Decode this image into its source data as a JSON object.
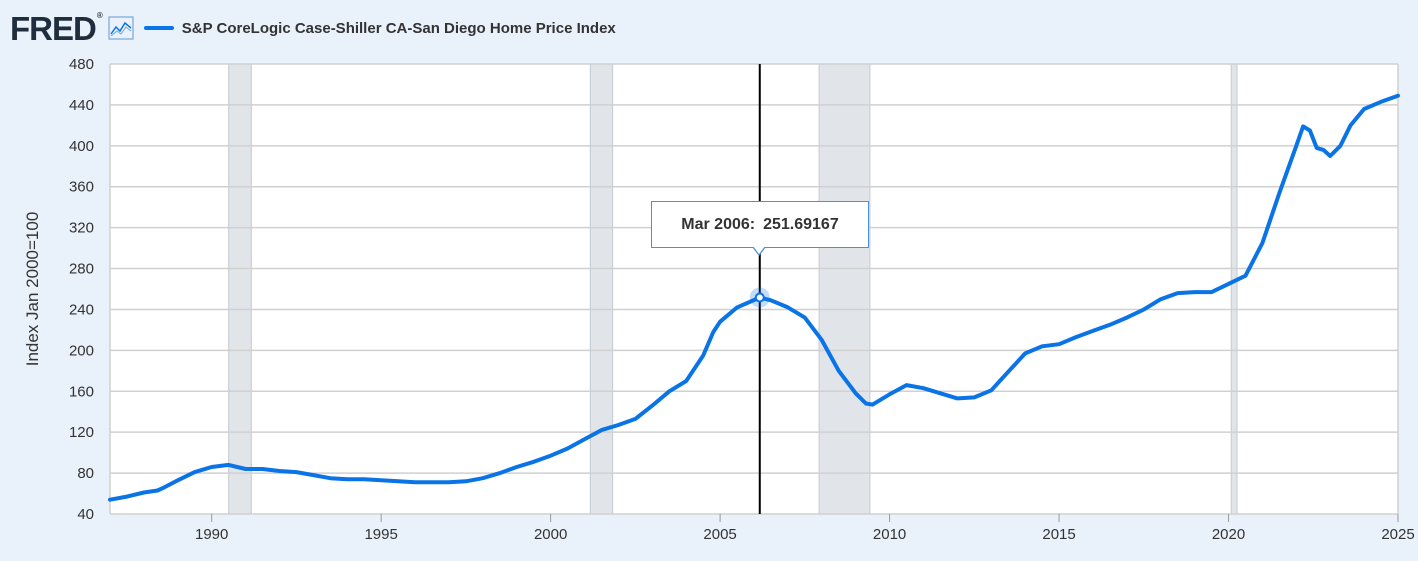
{
  "header": {
    "logo_text": "FRED",
    "logo_reg": "®",
    "series_title": "S&P CoreLogic Case-Shiller CA-San Diego Home Price Index"
  },
  "tooltip": {
    "date": "Mar 2006:",
    "value": "251.69167"
  },
  "colors": {
    "line": "#0a73e6",
    "background": "#e9f1fa",
    "plot_background": "#ffffff",
    "recession": "#e1e5ea",
    "grid": "#d0d0d0",
    "cursor": "#000000"
  },
  "chart_data": {
    "type": "line",
    "ylabel": "Index Jan 2000=100",
    "xlim": [
      1987.0,
      2025.0
    ],
    "ylim": [
      40,
      480
    ],
    "x_ticks": [
      1990,
      1995,
      2000,
      2005,
      2010,
      2015,
      2020,
      2025
    ],
    "x_tick_labels": [
      "1990",
      "1995",
      "2000",
      "2005",
      "2010",
      "2015",
      "2020",
      "2025"
    ],
    "y_ticks": [
      40,
      80,
      120,
      160,
      200,
      240,
      280,
      320,
      360,
      400,
      440,
      480
    ],
    "y_tick_labels": [
      "40",
      "80",
      "120",
      "160",
      "200",
      "240",
      "280",
      "320",
      "360",
      "400",
      "440",
      "480"
    ],
    "grid": true,
    "recessions": [
      [
        1990.5,
        1991.17
      ],
      [
        2001.17,
        2001.83
      ],
      [
        2007.92,
        2009.42
      ],
      [
        2020.08,
        2020.25
      ]
    ],
    "cursor_x": 2006.17,
    "highlight_point": {
      "x": 2006.17,
      "y": 251.69
    },
    "series": [
      {
        "x": [
          1987.0,
          1987.5,
          1988.0,
          1988.4,
          1988.6,
          1989.0,
          1989.5,
          1990.0,
          1990.5,
          1991.0,
          1991.5,
          1992.0,
          1992.5,
          1993.0,
          1993.5,
          1994.0,
          1994.5,
          1995.0,
          1995.5,
          1996.0,
          1996.5,
          1997.0,
          1997.5,
          1998.0,
          1998.5,
          1999.0,
          1999.5,
          2000.0,
          2000.5,
          2001.0,
          2001.5,
          2002.0,
          2002.5,
          2003.0,
          2003.5,
          2004.0,
          2004.5,
          2004.8,
          2005.0,
          2005.5,
          2006.17,
          2006.5,
          2007.0,
          2007.5,
          2008.0,
          2008.5,
          2009.0,
          2009.3,
          2009.5,
          2010.0,
          2010.5,
          2011.0,
          2011.5,
          2012.0,
          2012.5,
          2013.0,
          2013.5,
          2014.0,
          2014.5,
          2015.0,
          2015.5,
          2016.0,
          2016.5,
          2017.0,
          2017.5,
          2018.0,
          2018.5,
          2019.0,
          2019.5,
          2020.0,
          2020.5,
          2021.0,
          2021.5,
          2022.0,
          2022.2,
          2022.4,
          2022.6,
          2022.8,
          2023.0,
          2023.3,
          2023.6,
          2024.0,
          2024.5,
          2025.0
        ],
        "values": [
          54,
          57,
          61,
          63,
          66,
          73,
          81,
          86,
          88,
          84,
          84,
          82,
          81,
          78,
          75,
          74,
          74,
          73,
          72,
          71,
          71,
          71,
          72,
          75,
          80,
          86,
          91,
          97,
          104,
          113,
          122,
          127,
          133,
          146,
          160,
          170,
          195,
          218,
          228,
          242,
          251.69,
          249,
          242,
          232,
          210,
          180,
          158,
          148,
          147,
          157,
          166,
          163,
          158,
          153,
          154,
          161,
          179,
          197,
          204,
          206,
          213,
          219,
          225,
          232,
          240,
          250,
          256,
          257,
          257,
          265,
          273,
          305,
          354,
          400,
          419,
          415,
          398,
          396,
          390,
          400,
          420,
          436,
          443,
          449
        ]
      }
    ]
  }
}
